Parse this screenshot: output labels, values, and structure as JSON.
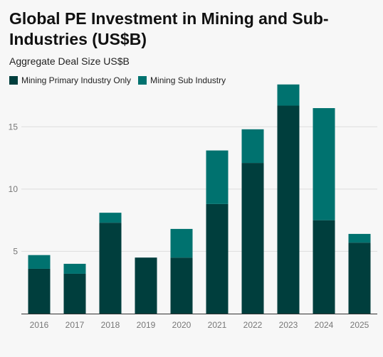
{
  "title": "Global PE Investment in Mining and Sub-Industries (US$B)",
  "subtitle": "Aggregate Deal Size US$B",
  "colors": {
    "primary": "#003e3d",
    "sub": "#00726f",
    "grid": "#dddddd",
    "axis": "#333333",
    "tick_text": "#777777",
    "background": "#f7f7f7"
  },
  "chart_data": {
    "type": "bar",
    "stacked": true,
    "title": "Global PE Investment in Mining and Sub-Industries (US$B)",
    "subtitle": "Aggregate Deal Size US$B",
    "categories": [
      "2016",
      "2017",
      "2018",
      "2019",
      "2020",
      "2021",
      "2022",
      "2023",
      "2024",
      "2025"
    ],
    "series": [
      {
        "name": "Mining Primary Industry Only",
        "color": "#003e3d",
        "values": [
          3.6,
          3.2,
          7.3,
          4.5,
          4.5,
          8.8,
          12.1,
          16.7,
          7.5,
          5.7
        ]
      },
      {
        "name": "Mining Sub Industry",
        "color": "#00726f",
        "values": [
          1.1,
          0.8,
          0.8,
          0.0,
          2.3,
          4.3,
          2.7,
          1.7,
          9.0,
          0.7
        ]
      }
    ],
    "ylim": [
      0,
      18.5
    ],
    "yticks": [
      5,
      10,
      15
    ],
    "grid": true,
    "legend_position": "top-left",
    "xlabel": "",
    "ylabel": ""
  }
}
